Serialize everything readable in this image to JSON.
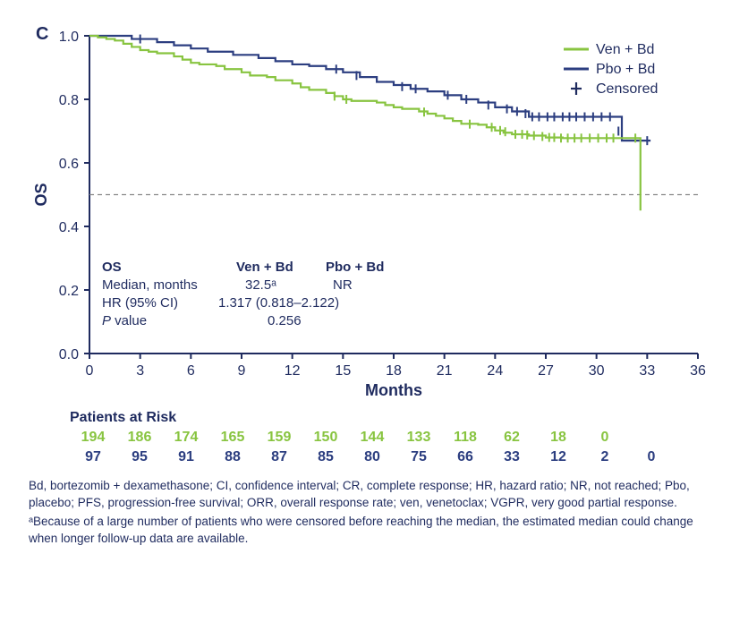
{
  "panel_label": "C",
  "chart": {
    "type": "kaplan-meier",
    "xlabel": "Months",
    "ylabel": "OS",
    "xlim": [
      0,
      36
    ],
    "ylim": [
      0.0,
      1.0
    ],
    "xtick_step": 3,
    "ytick_step": 0.2,
    "ytick_decimals": 1,
    "colors": {
      "ven": "#88c440",
      "pbo": "#2c3e80",
      "axis": "#1f2b5f",
      "reference_line": "#888888",
      "background": "#ffffff"
    },
    "line_width": 2.2,
    "reference_y": 0.5,
    "series": {
      "ven": {
        "label": "Ven + Bd",
        "steps": [
          [
            0,
            1.0
          ],
          [
            0.5,
            0.995
          ],
          [
            1,
            0.99
          ],
          [
            1.5,
            0.985
          ],
          [
            2,
            0.975
          ],
          [
            2.5,
            0.965
          ],
          [
            3,
            0.955
          ],
          [
            3.5,
            0.95
          ],
          [
            4,
            0.945
          ],
          [
            5,
            0.935
          ],
          [
            5.5,
            0.925
          ],
          [
            6,
            0.915
          ],
          [
            6.5,
            0.91
          ],
          [
            7.5,
            0.905
          ],
          [
            8,
            0.895
          ],
          [
            9,
            0.885
          ],
          [
            9.5,
            0.875
          ],
          [
            10.5,
            0.87
          ],
          [
            11,
            0.86
          ],
          [
            12,
            0.85
          ],
          [
            12.5,
            0.838
          ],
          [
            13,
            0.83
          ],
          [
            14,
            0.82
          ],
          [
            14.5,
            0.81
          ],
          [
            15,
            0.8
          ],
          [
            15.5,
            0.795
          ],
          [
            17,
            0.79
          ],
          [
            17.5,
            0.782
          ],
          [
            18,
            0.775
          ],
          [
            18.5,
            0.77
          ],
          [
            19.5,
            0.762
          ],
          [
            20,
            0.755
          ],
          [
            20.5,
            0.748
          ],
          [
            21,
            0.74
          ],
          [
            21.5,
            0.732
          ],
          [
            22,
            0.723
          ],
          [
            23,
            0.72
          ],
          [
            23.5,
            0.712
          ],
          [
            24,
            0.702
          ],
          [
            24.5,
            0.695
          ],
          [
            25,
            0.69
          ],
          [
            26,
            0.686
          ],
          [
            27,
            0.68
          ],
          [
            28,
            0.678
          ],
          [
            30,
            0.678
          ],
          [
            32.5,
            0.678
          ],
          [
            32.6,
            0.45
          ]
        ],
        "censored": [
          [
            14.5,
            0.81
          ],
          [
            15.2,
            0.8
          ],
          [
            19.8,
            0.76
          ],
          [
            22.5,
            0.722
          ],
          [
            23.8,
            0.712
          ],
          [
            24.3,
            0.702
          ],
          [
            24.6,
            0.698
          ],
          [
            25.2,
            0.69
          ],
          [
            25.6,
            0.69
          ],
          [
            25.9,
            0.688
          ],
          [
            26.3,
            0.686
          ],
          [
            26.8,
            0.683
          ],
          [
            27.2,
            0.68
          ],
          [
            27.5,
            0.68
          ],
          [
            27.9,
            0.678
          ],
          [
            28.3,
            0.678
          ],
          [
            28.7,
            0.678
          ],
          [
            29.1,
            0.678
          ],
          [
            29.6,
            0.678
          ],
          [
            30.1,
            0.678
          ],
          [
            30.6,
            0.678
          ],
          [
            31.0,
            0.678
          ],
          [
            32.3,
            0.678
          ]
        ]
      },
      "pbo": {
        "label": "Pbo + Bd",
        "steps": [
          [
            0,
            1.0
          ],
          [
            1.5,
            1.0
          ],
          [
            2.5,
            0.99
          ],
          [
            4,
            0.98
          ],
          [
            5,
            0.97
          ],
          [
            6,
            0.96
          ],
          [
            7,
            0.95
          ],
          [
            8.5,
            0.94
          ],
          [
            10,
            0.93
          ],
          [
            11,
            0.92
          ],
          [
            12,
            0.91
          ],
          [
            13,
            0.905
          ],
          [
            14,
            0.895
          ],
          [
            15,
            0.885
          ],
          [
            16,
            0.87
          ],
          [
            17,
            0.855
          ],
          [
            18,
            0.845
          ],
          [
            19,
            0.833
          ],
          [
            20,
            0.825
          ],
          [
            21,
            0.813
          ],
          [
            22,
            0.8
          ],
          [
            23,
            0.79
          ],
          [
            24,
            0.775
          ],
          [
            25,
            0.762
          ],
          [
            26,
            0.745
          ],
          [
            27,
            0.745
          ],
          [
            30,
            0.745
          ],
          [
            31,
            0.745
          ],
          [
            31.5,
            0.67
          ],
          [
            33.2,
            0.67
          ]
        ],
        "censored": [
          [
            3.0,
            0.99
          ],
          [
            14.6,
            0.895
          ],
          [
            15.8,
            0.875
          ],
          [
            18.5,
            0.84
          ],
          [
            19.3,
            0.833
          ],
          [
            21.2,
            0.813
          ],
          [
            22.3,
            0.8
          ],
          [
            23.6,
            0.782
          ],
          [
            24.7,
            0.77
          ],
          [
            25.3,
            0.762
          ],
          [
            25.8,
            0.755
          ],
          [
            26.2,
            0.745
          ],
          [
            26.6,
            0.745
          ],
          [
            27.1,
            0.745
          ],
          [
            27.5,
            0.745
          ],
          [
            28.0,
            0.745
          ],
          [
            28.4,
            0.745
          ],
          [
            28.8,
            0.745
          ],
          [
            29.3,
            0.745
          ],
          [
            29.8,
            0.745
          ],
          [
            30.3,
            0.745
          ],
          [
            30.8,
            0.745
          ],
          [
            31.3,
            0.7
          ],
          [
            33.0,
            0.67
          ]
        ]
      }
    },
    "legend": {
      "items": [
        {
          "key": "ven",
          "label": "Ven + Bd"
        },
        {
          "key": "pbo",
          "label": "Pbo + Bd"
        },
        {
          "key": "censored",
          "label": "Censored"
        }
      ]
    },
    "stats_table": {
      "header_os": "OS",
      "col1": "Ven + Bd",
      "col2": "Pbo + Bd",
      "rows": [
        {
          "label": "Median, months",
          "v1": "32.5ᵃ",
          "v2": "NR"
        },
        {
          "label": "HR (95% CI)",
          "v1": "1.317 (0.818–2.122)",
          "v2": ""
        },
        {
          "label": "P value",
          "v1_italic": "P",
          "v1_rest": " value",
          "val": "0.256"
        }
      ]
    }
  },
  "patients_at_risk": {
    "title": "Patients at Risk",
    "x_values": [
      0,
      3,
      6,
      9,
      12,
      15,
      18,
      21,
      24,
      27,
      30,
      33,
      36
    ],
    "ven": [
      "194",
      "186",
      "174",
      "165",
      "159",
      "150",
      "144",
      "133",
      "118",
      "62",
      "18",
      "0",
      ""
    ],
    "pbo": [
      "97",
      "95",
      "91",
      "88",
      "87",
      "85",
      "80",
      "75",
      "66",
      "33",
      "12",
      "2",
      "0"
    ]
  },
  "footnotes": {
    "line1": "Bd, bortezomib + dexamethasone; CI, confidence interval; CR, complete response; HR, hazard ratio; NR, not reached; Pbo, placebo; PFS, progression-free survival; ORR, overall response rate; ven, venetoclax; VGPR, very good partial response.",
    "line2": "ᵃBecause of a large number of patients who were censored before reaching the median, the estimated median could change when longer follow-up data are available."
  }
}
